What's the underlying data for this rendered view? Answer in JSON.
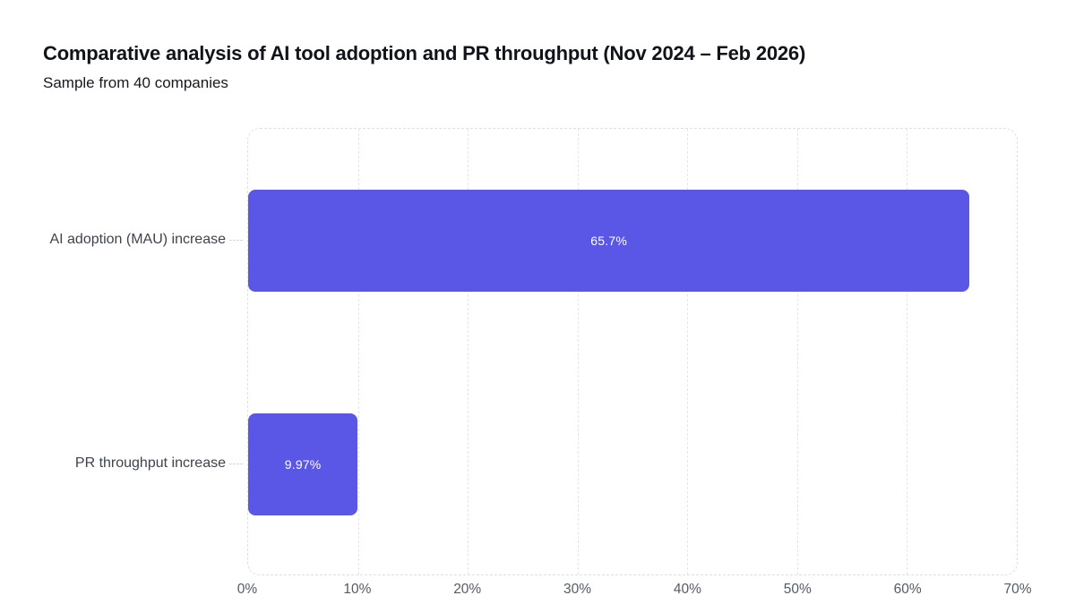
{
  "header": {
    "title": "Comparative analysis of AI tool adoption and PR throughput (Nov 2024 – Feb 2026)",
    "subtitle": "Sample from 40 companies"
  },
  "chart_data": {
    "type": "bar",
    "orientation": "horizontal",
    "title": "Comparative analysis of AI tool adoption and PR throughput (Nov 2024 – Feb 2026)",
    "subtitle": "Sample from 40 companies",
    "categories": [
      "AI adoption (MAU) increase",
      "PR throughput increase"
    ],
    "values": [
      65.7,
      9.97
    ],
    "value_labels": [
      "65.7%",
      "9.97%"
    ],
    "xlabel": "",
    "ylabel": "",
    "xlim": [
      0,
      70
    ],
    "x_ticks": [
      "0%",
      "10%",
      "20%",
      "30%",
      "40%",
      "50%",
      "60%",
      "70%"
    ],
    "grid": "vertical-dashed",
    "legend": "none",
    "bar_color": "#5b57e6",
    "value_label_color": "#ffffff",
    "gridline_color": "#e6e6e9",
    "border_color": "#dfdfe3",
    "background_color": "#ffffff"
  }
}
